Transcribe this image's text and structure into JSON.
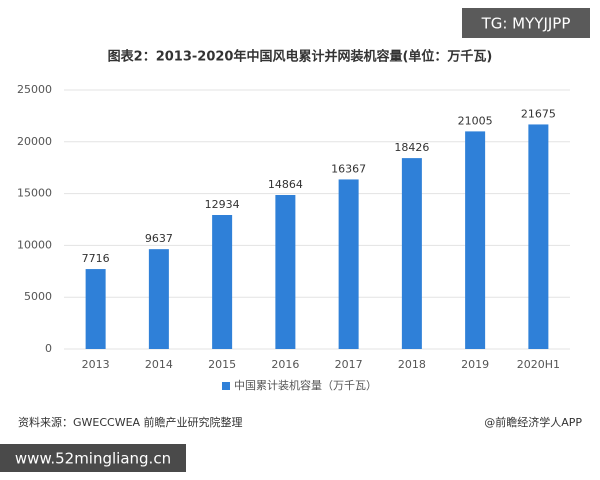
{
  "chart_data": {
    "type": "bar",
    "title": "图表2：2013-2020年中国风电累计并网装机容量(单位：万千瓦)",
    "categories": [
      "2013",
      "2014",
      "2015",
      "2016",
      "2017",
      "2018",
      "2019",
      "2020H1"
    ],
    "series": [
      {
        "name": "中国累计装机容量（万千瓦）",
        "color": "#2f80d8",
        "values": [
          7716,
          9637,
          12934,
          14864,
          16367,
          18426,
          21005,
          21675
        ]
      }
    ],
    "ylim": [
      0,
      25000
    ],
    "yticks": [
      0,
      5000,
      10000,
      15000,
      20000,
      25000
    ],
    "grid": true,
    "legend": "bottom",
    "source": "资料来源：GWECCWEA 前瞻产业研究院整理",
    "credit": "@前瞻经济学人APP"
  },
  "overlay": {
    "top": "TG: MYYJJPP",
    "bottom": "www.52mingliang.cn"
  }
}
